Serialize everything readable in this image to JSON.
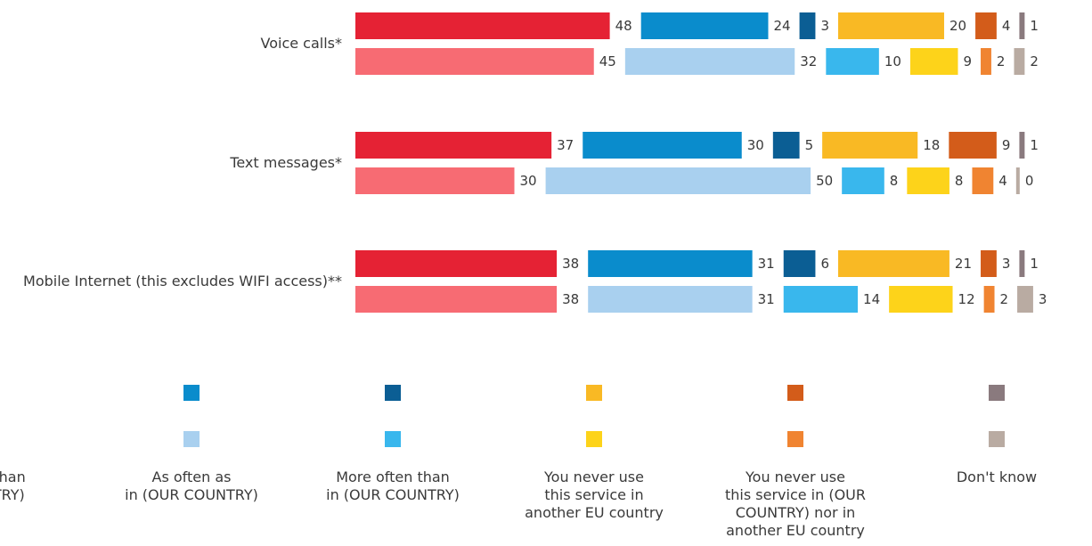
{
  "chart_data": {
    "type": "bar",
    "orientation": "horizontal",
    "layout": "stacked segments with gaps",
    "categories": [
      "Voice calls*",
      "Text messages*",
      "Mobile Internet (this excludes WIFI access)**"
    ],
    "rows_per_category": 2,
    "legend_labels": [
      "…en than\n…UNTRY)",
      "As often as\nin (OUR COUNTRY)",
      "More often than\nin (OUR COUNTRY)",
      "You never use\nthis service in\nanother EU country",
      "You never use\nthis service in (OUR\nCOUNTRY) nor in\nanother EU country",
      "Don't know"
    ],
    "row1_colors": [
      "#e52234",
      "#0a8ccc",
      "#0b5e94",
      "#f9b924",
      "#d35c1a",
      "#8a7a7e"
    ],
    "row2_colors": [
      "#f76b73",
      "#a9d0ef",
      "#39b7ed",
      "#fdd31a",
      "#f08431",
      "#b9aba2"
    ],
    "rows": [
      {
        "category": "Voice calls*",
        "row": 1,
        "values": [
          48,
          24,
          3,
          20,
          4,
          1
        ]
      },
      {
        "category": "Voice calls*",
        "row": 2,
        "values": [
          45,
          32,
          10,
          9,
          2,
          2
        ]
      },
      {
        "category": "Text messages*",
        "row": 1,
        "values": [
          37,
          30,
          5,
          18,
          9,
          1
        ]
      },
      {
        "category": "Text messages*",
        "row": 2,
        "values": [
          30,
          50,
          8,
          8,
          4,
          0
        ]
      },
      {
        "category": "Mobile Internet (this excludes WIFI access)**",
        "row": 1,
        "values": [
          38,
          31,
          6,
          21,
          3,
          1
        ]
      },
      {
        "category": "Mobile Internet (this excludes WIFI access)**",
        "row": 2,
        "values": [
          38,
          31,
          14,
          12,
          2,
          3
        ]
      }
    ]
  }
}
